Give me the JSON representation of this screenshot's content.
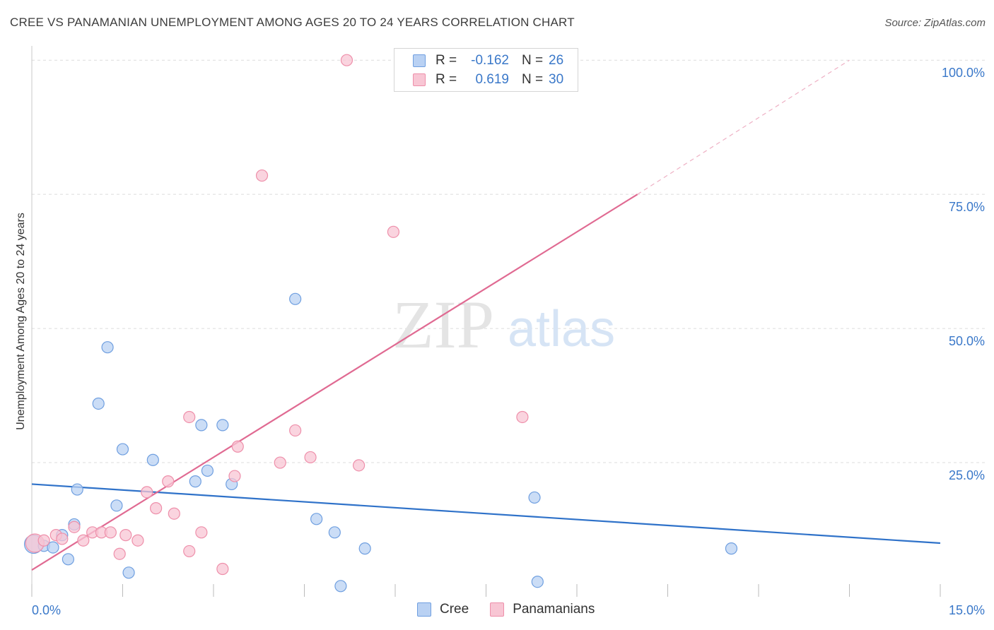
{
  "title": "CREE VS PANAMANIAN UNEMPLOYMENT AMONG AGES 20 TO 24 YEARS CORRELATION CHART",
  "source": "Source: ZipAtlas.com",
  "watermark": {
    "zip": "ZIP",
    "atlas": "atlas"
  },
  "colors": {
    "cree": "#6f9fe0",
    "cree_fill": "#b9d1f3",
    "cree_line": "#2f72c9",
    "pan": "#ee8faa",
    "pan_fill": "#f8c6d4",
    "pan_line": "#e06a92",
    "axis_text": "#3a78c9"
  },
  "legend": {
    "rows": [
      {
        "r_label": "R =",
        "r_value": "-0.162",
        "n_label": "N =",
        "n_value": "26"
      },
      {
        "r_label": "R =",
        "r_value": "0.619",
        "n_label": "N =",
        "n_value": "30"
      }
    ]
  },
  "bottom_legend": [
    "Cree",
    "Panamanians"
  ],
  "chart_data": {
    "type": "scatter",
    "title": "CREE VS PANAMANIAN UNEMPLOYMENT AMONG AGES 20 TO 24 YEARS CORRELATION CHART",
    "xlabel": "",
    "ylabel": "Unemployment Among Ages 20 to 24 years",
    "xlim": [
      0,
      15
    ],
    "ylim": [
      0,
      102
    ],
    "x_tick_labels": [
      {
        "value": 0,
        "label": "0.0%"
      },
      {
        "value": 15,
        "label": "15.0%"
      }
    ],
    "y_tick_labels": [
      {
        "value": 25,
        "label": "25.0%"
      },
      {
        "value": 50,
        "label": "50.0%"
      },
      {
        "value": 75,
        "label": "75.0%"
      },
      {
        "value": 100,
        "label": "100.0%"
      }
    ],
    "grid": true,
    "legend_position": "top-center",
    "series": [
      {
        "name": "Cree",
        "points": [
          [
            0.03,
            9.8
          ],
          [
            0.2,
            9.5
          ],
          [
            0.35,
            9.2
          ],
          [
            0.5,
            11.5
          ],
          [
            0.6,
            7.0
          ],
          [
            0.7,
            13.5
          ],
          [
            0.75,
            20.0
          ],
          [
            1.1,
            36.0
          ],
          [
            1.25,
            46.5
          ],
          [
            1.4,
            17.0
          ],
          [
            1.5,
            27.5
          ],
          [
            1.6,
            4.5
          ],
          [
            2.0,
            25.5
          ],
          [
            2.7,
            21.5
          ],
          [
            2.8,
            32.0
          ],
          [
            2.9,
            23.5
          ],
          [
            3.15,
            32.0
          ],
          [
            3.3,
            21.0
          ],
          [
            4.35,
            55.5
          ],
          [
            4.7,
            14.5
          ],
          [
            5.0,
            12.0
          ],
          [
            5.1,
            2.0
          ],
          [
            5.5,
            9.0
          ],
          [
            8.3,
            18.5
          ],
          [
            8.35,
            2.8
          ],
          [
            11.55,
            9.0
          ]
        ],
        "trend": [
          [
            0,
            21.0
          ],
          [
            15,
            10.0
          ]
        ]
      },
      {
        "name": "Panamanians",
        "points": [
          [
            0.05,
            10.0
          ],
          [
            0.2,
            10.5
          ],
          [
            0.4,
            11.5
          ],
          [
            0.5,
            10.8
          ],
          [
            0.7,
            13.0
          ],
          [
            0.85,
            10.5
          ],
          [
            1.0,
            12.0
          ],
          [
            1.15,
            12.0
          ],
          [
            1.3,
            12.0
          ],
          [
            1.45,
            8.0
          ],
          [
            1.55,
            11.5
          ],
          [
            1.75,
            10.5
          ],
          [
            1.9,
            19.5
          ],
          [
            2.05,
            16.5
          ],
          [
            2.25,
            21.5
          ],
          [
            2.35,
            15.5
          ],
          [
            2.6,
            8.5
          ],
          [
            2.6,
            33.5
          ],
          [
            2.8,
            12.0
          ],
          [
            3.15,
            5.2
          ],
          [
            3.35,
            22.5
          ],
          [
            3.4,
            28.0
          ],
          [
            3.8,
            78.5
          ],
          [
            4.1,
            25.0
          ],
          [
            4.35,
            31.0
          ],
          [
            4.6,
            26.0
          ],
          [
            5.2,
            100.0
          ],
          [
            5.4,
            24.5
          ],
          [
            5.97,
            68.0
          ],
          [
            8.1,
            33.5
          ]
        ],
        "trend": [
          [
            0,
            5.0
          ],
          [
            10.0,
            75.0
          ]
        ],
        "trend_dashed": [
          [
            10.0,
            75.0
          ],
          [
            13.5,
            100.0
          ]
        ]
      }
    ]
  }
}
